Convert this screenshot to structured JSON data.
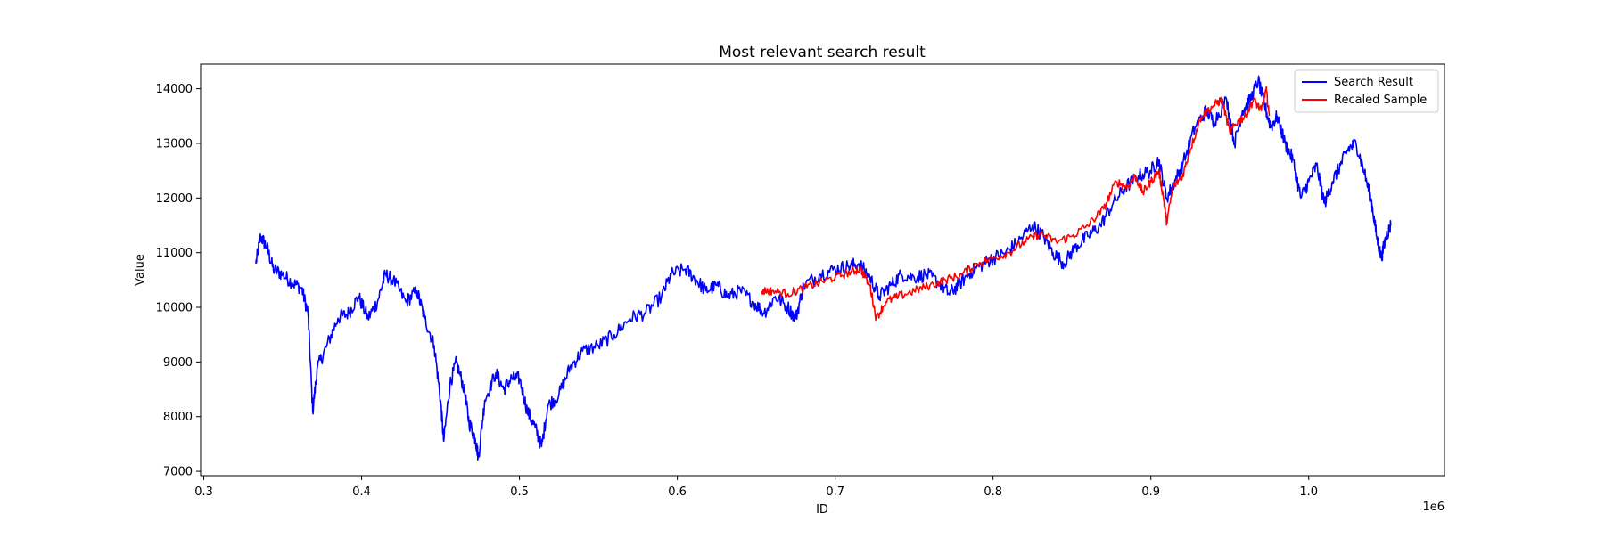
{
  "chart_data": {
    "type": "line",
    "title": "Most relevant search result",
    "xlabel": "ID",
    "ylabel": "Value",
    "x_offset_label": "1e6",
    "xlim": [
      0.298,
      1.086
    ],
    "ylim": [
      6920,
      14450
    ],
    "x_ticks": [
      0.3,
      0.4,
      0.5,
      0.6,
      0.7,
      0.8,
      0.9,
      1.0
    ],
    "x_tick_labels": [
      "0.3",
      "0.4",
      "0.5",
      "0.6",
      "0.7",
      "0.8",
      "0.9",
      "1.0"
    ],
    "y_ticks": [
      7000,
      8000,
      9000,
      10000,
      11000,
      12000,
      13000,
      14000
    ],
    "y_tick_labels": [
      "7000",
      "8000",
      "9000",
      "10000",
      "11000",
      "12000",
      "13000",
      "14000"
    ],
    "grid": false,
    "legend_position": "upper right",
    "series": [
      {
        "name": "Search Result",
        "color": "#0000ff",
        "points": [
          [
            0.333,
            10800
          ],
          [
            0.336,
            11300
          ],
          [
            0.34,
            11100
          ],
          [
            0.344,
            10700
          ],
          [
            0.35,
            10600
          ],
          [
            0.356,
            10450
          ],
          [
            0.362,
            10350
          ],
          [
            0.366,
            9900
          ],
          [
            0.369,
            8100
          ],
          [
            0.372,
            8900
          ],
          [
            0.378,
            9300
          ],
          [
            0.385,
            9800
          ],
          [
            0.392,
            9900
          ],
          [
            0.398,
            10200
          ],
          [
            0.404,
            9800
          ],
          [
            0.41,
            10100
          ],
          [
            0.415,
            10600
          ],
          [
            0.42,
            10500
          ],
          [
            0.428,
            10100
          ],
          [
            0.435,
            10300
          ],
          [
            0.44,
            9800
          ],
          [
            0.446,
            9300
          ],
          [
            0.45,
            8300
          ],
          [
            0.452,
            7550
          ],
          [
            0.456,
            8600
          ],
          [
            0.46,
            9000
          ],
          [
            0.465,
            8500
          ],
          [
            0.468,
            7900
          ],
          [
            0.472,
            7600
          ],
          [
            0.474,
            7250
          ],
          [
            0.478,
            8300
          ],
          [
            0.485,
            8800
          ],
          [
            0.49,
            8500
          ],
          [
            0.495,
            8700
          ],
          [
            0.5,
            8700
          ],
          [
            0.505,
            8100
          ],
          [
            0.51,
            7800
          ],
          [
            0.514,
            7450
          ],
          [
            0.518,
            8200
          ],
          [
            0.525,
            8400
          ],
          [
            0.532,
            8900
          ],
          [
            0.54,
            9200
          ],
          [
            0.55,
            9300
          ],
          [
            0.56,
            9500
          ],
          [
            0.57,
            9800
          ],
          [
            0.58,
            9900
          ],
          [
            0.59,
            10200
          ],
          [
            0.596,
            10600
          ],
          [
            0.605,
            10700
          ],
          [
            0.612,
            10500
          ],
          [
            0.618,
            10300
          ],
          [
            0.625,
            10400
          ],
          [
            0.632,
            10200
          ],
          [
            0.64,
            10300
          ],
          [
            0.648,
            10100
          ],
          [
            0.655,
            9900
          ],
          [
            0.662,
            10200
          ],
          [
            0.67,
            10000
          ],
          [
            0.675,
            9800
          ],
          [
            0.68,
            10400
          ],
          [
            0.69,
            10600
          ],
          [
            0.7,
            10700
          ],
          [
            0.708,
            10750
          ],
          [
            0.715,
            10800
          ],
          [
            0.722,
            10550
          ],
          [
            0.728,
            10200
          ],
          [
            0.735,
            10400
          ],
          [
            0.742,
            10600
          ],
          [
            0.75,
            10550
          ],
          [
            0.758,
            10600
          ],
          [
            0.766,
            10450
          ],
          [
            0.772,
            10250
          ],
          [
            0.778,
            10400
          ],
          [
            0.786,
            10650
          ],
          [
            0.794,
            10800
          ],
          [
            0.8,
            10900
          ],
          [
            0.808,
            11000
          ],
          [
            0.816,
            11200
          ],
          [
            0.825,
            11500
          ],
          [
            0.832,
            11300
          ],
          [
            0.838,
            11000
          ],
          [
            0.845,
            10800
          ],
          [
            0.852,
            11100
          ],
          [
            0.86,
            11300
          ],
          [
            0.868,
            11500
          ],
          [
            0.876,
            11900
          ],
          [
            0.884,
            12200
          ],
          [
            0.892,
            12400
          ],
          [
            0.9,
            12500
          ],
          [
            0.905,
            12700
          ],
          [
            0.91,
            12000
          ],
          [
            0.915,
            12300
          ],
          [
            0.92,
            12600
          ],
          [
            0.928,
            13300
          ],
          [
            0.935,
            13600
          ],
          [
            0.94,
            13400
          ],
          [
            0.948,
            13800
          ],
          [
            0.953,
            13000
          ],
          [
            0.958,
            13600
          ],
          [
            0.963,
            13800
          ],
          [
            0.968,
            14150
          ],
          [
            0.972,
            13700
          ],
          [
            0.976,
            13300
          ],
          [
            0.98,
            13500
          ],
          [
            0.985,
            13000
          ],
          [
            0.99,
            12700
          ],
          [
            0.995,
            12000
          ],
          [
            1.0,
            12300
          ],
          [
            1.005,
            12600
          ],
          [
            1.01,
            11900
          ],
          [
            1.015,
            12300
          ],
          [
            1.02,
            12600
          ],
          [
            1.025,
            12900
          ],
          [
            1.03,
            13000
          ],
          [
            1.035,
            12500
          ],
          [
            1.04,
            11900
          ],
          [
            1.043,
            11300
          ],
          [
            1.046,
            10900
          ],
          [
            1.049,
            11300
          ],
          [
            1.052,
            11500
          ]
        ]
      },
      {
        "name": "Recaled Sample",
        "color": "#ff0000",
        "points": [
          [
            0.653,
            10300
          ],
          [
            0.66,
            10300
          ],
          [
            0.67,
            10250
          ],
          [
            0.68,
            10350
          ],
          [
            0.69,
            10450
          ],
          [
            0.7,
            10550
          ],
          [
            0.71,
            10650
          ],
          [
            0.716,
            10700
          ],
          [
            0.722,
            10400
          ],
          [
            0.726,
            9800
          ],
          [
            0.732,
            10100
          ],
          [
            0.74,
            10200
          ],
          [
            0.75,
            10300
          ],
          [
            0.76,
            10400
          ],
          [
            0.77,
            10500
          ],
          [
            0.78,
            10600
          ],
          [
            0.79,
            10800
          ],
          [
            0.8,
            10900
          ],
          [
            0.81,
            11000
          ],
          [
            0.82,
            11200
          ],
          [
            0.83,
            11350
          ],
          [
            0.84,
            11200
          ],
          [
            0.85,
            11300
          ],
          [
            0.86,
            11500
          ],
          [
            0.87,
            11800
          ],
          [
            0.878,
            12300
          ],
          [
            0.885,
            12200
          ],
          [
            0.89,
            12400
          ],
          [
            0.895,
            12100
          ],
          [
            0.9,
            12300
          ],
          [
            0.905,
            12500
          ],
          [
            0.908,
            12000
          ],
          [
            0.91,
            11550
          ],
          [
            0.914,
            12200
          ],
          [
            0.92,
            12400
          ],
          [
            0.925,
            12900
          ],
          [
            0.932,
            13500
          ],
          [
            0.94,
            13700
          ],
          [
            0.945,
            13800
          ],
          [
            0.95,
            13200
          ],
          [
            0.955,
            13400
          ],
          [
            0.96,
            13500
          ],
          [
            0.965,
            13800
          ],
          [
            0.97,
            13600
          ],
          [
            0.973,
            14000
          ],
          [
            0.975,
            13500
          ]
        ]
      }
    ]
  }
}
